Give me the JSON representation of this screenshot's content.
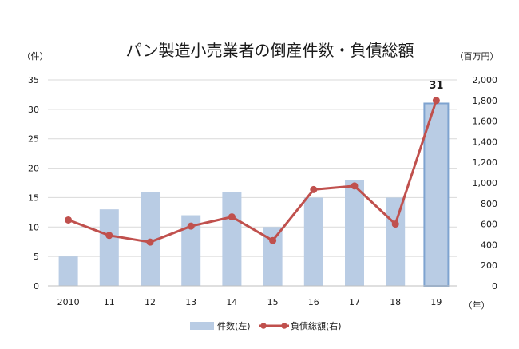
{
  "chart_data": {
    "type": "bar",
    "title": "パン製造小売業者の倒産件数・負債総額",
    "y_left_unit": "（件）",
    "y_right_unit": "（百万円）",
    "x_unit": "（年）",
    "categories": [
      "2010",
      "11",
      "12",
      "13",
      "14",
      "15",
      "16",
      "17",
      "18",
      "19"
    ],
    "ylim_left": [
      0,
      35
    ],
    "yticks_left": [
      "0",
      "5",
      "10",
      "15",
      "20",
      "25",
      "30",
      "35"
    ],
    "ylim_right": [
      0,
      2000
    ],
    "yticks_right": [
      "0",
      "200",
      "400",
      "600",
      "800",
      "1,000",
      "1,200",
      "1,400",
      "1,600",
      "1,800",
      "2,000"
    ],
    "series": [
      {
        "name": "件数(左)",
        "type": "bar",
        "axis": "left",
        "color": "#b9cce4",
        "highlight_color": "#7ea3d0",
        "values": [
          5,
          13,
          16,
          12,
          16,
          10,
          15,
          18,
          15,
          31
        ]
      },
      {
        "name": "負債総額(右)",
        "type": "line",
        "axis": "right",
        "color": "#c0504d",
        "values": [
          640,
          490,
          425,
          580,
          670,
          440,
          935,
          970,
          600,
          1800
        ]
      }
    ],
    "annotations": [
      {
        "category": "19",
        "text": "31"
      }
    ],
    "grid": true,
    "legend_position": "bottom"
  }
}
